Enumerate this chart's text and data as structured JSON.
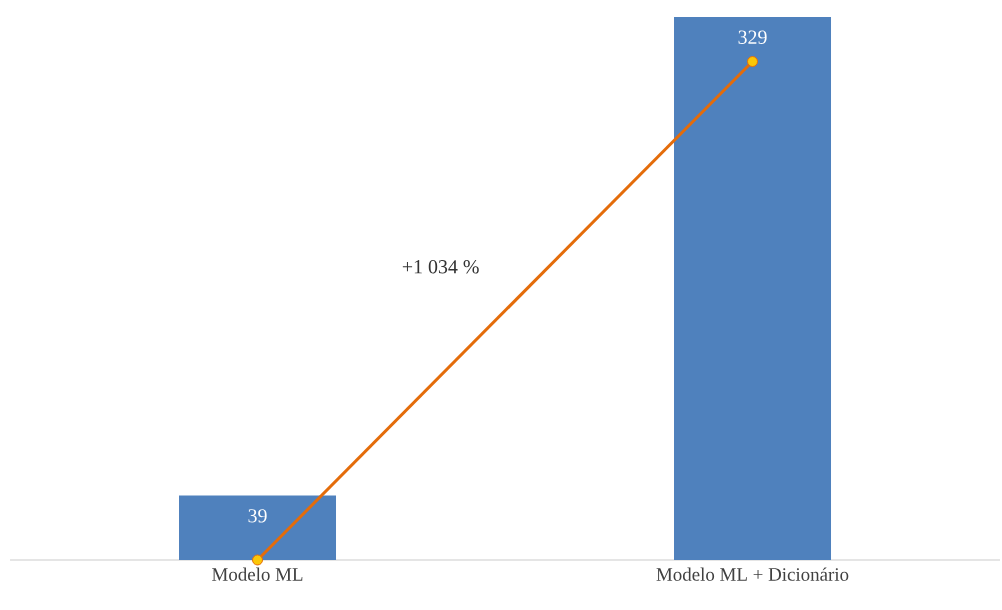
{
  "chart_data": {
    "type": "bar",
    "categories": [
      "Modelo ML",
      "Modelo ML + Dicionário"
    ],
    "series": [
      {
        "color": "#4f81bd",
        "values": [
          39,
          329
        ],
        "value_labels": [
          "39",
          "329"
        ]
      },
      {
        "type": "line",
        "color": "#e46c0a",
        "values": [
          0,
          302
        ],
        "marker": "circle"
      }
    ],
    "annotations": [
      "+1 034 %"
    ]
  }
}
